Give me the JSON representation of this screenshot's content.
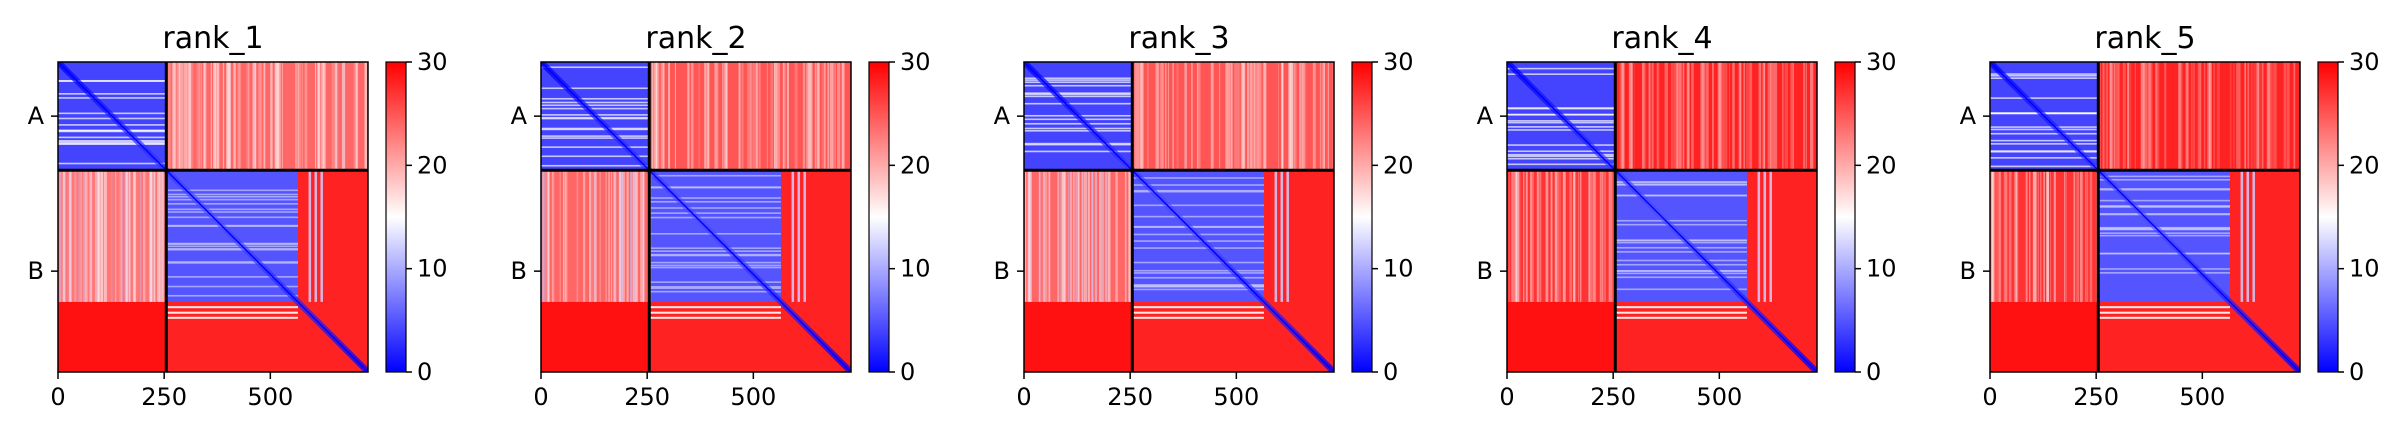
{
  "chart_data": {
    "type": "heatmap",
    "colormap": {
      "name": "bwr",
      "vmin": 0,
      "vmax": 30,
      "low": "#0000ff",
      "mid": "#ffffff",
      "high": "#ff0000"
    },
    "matrix_size": 730,
    "chain_boundary": 255,
    "chains": [
      {
        "label": "A",
        "start": 0,
        "end": 255
      },
      {
        "label": "B",
        "start": 255,
        "end": 730
      }
    ],
    "xticks": [
      0,
      250,
      500
    ],
    "colorbar_ticks": [
      0,
      10,
      20,
      30
    ],
    "panels": [
      {
        "title": "rank_1",
        "inter_chain_mean": 24
      },
      {
        "title": "rank_2",
        "inter_chain_mean": 25
      },
      {
        "title": "rank_3",
        "inter_chain_mean": 25
      },
      {
        "title": "rank_4",
        "inter_chain_mean": 28
      },
      {
        "title": "rank_5",
        "inter_chain_mean": 28
      }
    ]
  }
}
